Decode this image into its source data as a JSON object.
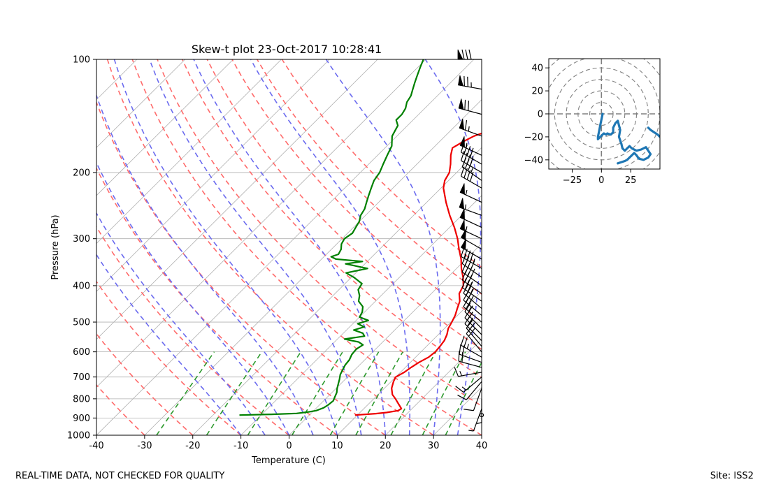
{
  "colors": {
    "temperature": "#ee0000",
    "dewpoint": "#008000",
    "isotherm": "#b0b0b0",
    "dry_adiabat": "#ff6b6b",
    "moist_adiabat": "#6b6bef",
    "mixing_ratio": "#2e9a2e",
    "hodograph": "#1f77b4",
    "hodo_rings": "#808080"
  },
  "footer": {
    "left": "REAL-TIME DATA, NOT CHECKED FOR QUALITY",
    "right": "Site: ISS2"
  },
  "chart_data": [
    {
      "type": "line",
      "title": "Skew-t plot 23-Oct-2017 10:28:41",
      "xlabel": "Temperature (C)",
      "ylabel": "Pressure (hPa)",
      "xlim": [
        -40,
        40
      ],
      "ylim": [
        1000,
        100
      ],
      "y_scale": "log",
      "x_ticks": [
        -40,
        -30,
        -20,
        -10,
        0,
        10,
        20,
        30,
        40
      ],
      "y_ticks": [
        100,
        200,
        300,
        400,
        500,
        600,
        700,
        800,
        900,
        1000
      ],
      "grid": true,
      "dry_adiabats_theta_c": [
        -30,
        -20,
        -10,
        0,
        10,
        20,
        30,
        40,
        50,
        60,
        70,
        80,
        90,
        100
      ],
      "moist_adiabats_start_c": [
        -10,
        -5,
        0,
        5,
        10,
        15,
        20,
        25,
        30,
        35
      ],
      "mixing_ratio_lines_gkg": [
        0.4,
        1,
        2,
        4,
        7,
        10,
        16,
        24,
        32
      ],
      "series": [
        {
          "key": "temperature",
          "p": [
            884,
            876,
            870,
            860,
            850,
            830,
            800,
            780,
            750,
            720,
            700,
            680,
            660,
            640,
            620,
            600,
            580,
            560,
            540,
            520,
            500,
            480,
            460,
            440,
            420,
            400,
            380,
            360,
            340,
            320,
            300,
            280,
            260,
            240,
            220,
            210,
            200,
            190,
            180,
            172,
            165,
            160,
            155,
            150,
            145,
            140,
            135,
            130,
            125,
            120,
            115,
            110,
            105,
            100
          ],
          "values": [
            9.5,
            13.5,
            15.5,
            17.5,
            17.8,
            16.5,
            14.5,
            13.0,
            11.5,
            10.5,
            10.0,
            10.8,
            11.2,
            11.8,
            12.7,
            13.0,
            12.8,
            12.5,
            11.8,
            10.8,
            10.2,
            9.5,
            8.5,
            7.5,
            5.8,
            5.0,
            3.2,
            1.0,
            -1.0,
            -3.5,
            -6.0,
            -9.0,
            -12.5,
            -16.0,
            -19.5,
            -20.8,
            -21.5,
            -23.0,
            -24.8,
            -26.0,
            -25.0,
            -24.0,
            -22.0,
            -21.0,
            -20.0,
            -20.5,
            -19.0,
            -18.0,
            -17.5,
            -17.2,
            -16.5,
            -15.5,
            -15.0,
            -13.5
          ]
        },
        {
          "key": "dewpoint",
          "p": [
            884,
            880,
            875,
            868,
            860,
            845,
            830,
            810,
            790,
            770,
            750,
            730,
            710,
            690,
            670,
            650,
            630,
            610,
            590,
            575,
            565,
            555,
            545,
            535,
            525,
            515,
            505,
            495,
            485,
            470,
            455,
            440,
            425,
            410,
            395,
            380,
            370,
            360,
            350,
            345,
            340,
            335,
            330,
            320,
            310,
            300,
            290,
            280,
            270,
            260,
            250,
            240,
            230,
            220,
            210,
            200,
            190,
            180,
            170,
            160,
            150,
            145,
            140,
            135,
            130,
            125,
            120,
            115,
            110,
            105,
            100
          ],
          "values": [
            -14.5,
            -8.0,
            -3.0,
            -1.0,
            0.5,
            1.5,
            1.8,
            2.0,
            1.5,
            1.0,
            0.2,
            -0.5,
            -1.2,
            -2.0,
            -2.5,
            -3.0,
            -3.2,
            -3.8,
            -4.0,
            -3.5,
            -5.0,
            -8.5,
            -5.0,
            -6.0,
            -8.5,
            -7.0,
            -9.0,
            -7.5,
            -10.0,
            -10.5,
            -11.5,
            -13.5,
            -14.5,
            -16.0,
            -16.5,
            -19.5,
            -22.0,
            -18.5,
            -24.0,
            -21.0,
            -27.0,
            -28.5,
            -27.5,
            -28.0,
            -29.0,
            -29.5,
            -29.0,
            -29.5,
            -30.0,
            -31.0,
            -31.5,
            -32.5,
            -33.5,
            -34.5,
            -35.5,
            -36.0,
            -37.0,
            -38.0,
            -39.0,
            -41.0,
            -42.0,
            -43.5,
            -43.5,
            -44.0,
            -45.0,
            -45.5,
            -46.5,
            -47.5,
            -48.5,
            -49.5,
            -50.5
          ]
        }
      ],
      "wind_barbs": [
        {
          "p": 100,
          "dir": 270,
          "kt": 80
        },
        {
          "p": 120,
          "dir": 280,
          "kt": 75
        },
        {
          "p": 140,
          "dir": 285,
          "kt": 70
        },
        {
          "p": 160,
          "dir": 290,
          "kt": 65
        },
        {
          "p": 180,
          "dir": 295,
          "kt": 55
        },
        {
          "p": 190,
          "dir": 300,
          "kt": 40
        },
        {
          "p": 200,
          "dir": 300,
          "kt": 40
        },
        {
          "p": 210,
          "dir": 305,
          "kt": 35
        },
        {
          "p": 220,
          "dir": 300,
          "kt": 40
        },
        {
          "p": 240,
          "dir": 295,
          "kt": 55
        },
        {
          "p": 260,
          "dir": 290,
          "kt": 55
        },
        {
          "p": 280,
          "dir": 295,
          "kt": 50
        },
        {
          "p": 300,
          "dir": 295,
          "kt": 55
        },
        {
          "p": 320,
          "dir": 300,
          "kt": 50
        },
        {
          "p": 340,
          "dir": 300,
          "kt": 50
        },
        {
          "p": 360,
          "dir": 300,
          "kt": 45
        },
        {
          "p": 380,
          "dir": 305,
          "kt": 40
        },
        {
          "p": 400,
          "dir": 305,
          "kt": 40
        },
        {
          "p": 420,
          "dir": 305,
          "kt": 35
        },
        {
          "p": 440,
          "dir": 305,
          "kt": 35
        },
        {
          "p": 460,
          "dir": 310,
          "kt": 30
        },
        {
          "p": 480,
          "dir": 310,
          "kt": 30
        },
        {
          "p": 500,
          "dir": 310,
          "kt": 25
        },
        {
          "p": 520,
          "dir": 315,
          "kt": 25
        },
        {
          "p": 540,
          "dir": 315,
          "kt": 25
        },
        {
          "p": 560,
          "dir": 315,
          "kt": 20
        },
        {
          "p": 580,
          "dir": 320,
          "kt": 20
        },
        {
          "p": 600,
          "dir": 320,
          "kt": 20
        },
        {
          "p": 620,
          "dir": 300,
          "kt": 25
        },
        {
          "p": 640,
          "dir": 290,
          "kt": 20
        },
        {
          "p": 660,
          "dir": 285,
          "kt": 20
        },
        {
          "p": 680,
          "dir": 260,
          "kt": 15
        },
        {
          "p": 700,
          "dir": 230,
          "kt": 15
        },
        {
          "p": 720,
          "dir": 220,
          "kt": 10
        },
        {
          "p": 750,
          "dir": 200,
          "kt": 10
        },
        {
          "p": 800,
          "dir": 180,
          "kt": 5
        },
        {
          "p": 850,
          "dir": 200,
          "kt": 5
        }
      ]
    },
    {
      "type": "line",
      "title": "",
      "xlim": [
        -45,
        50
      ],
      "ylim": [
        -48,
        48
      ],
      "x_ticks": [
        -25,
        0,
        25
      ],
      "y_ticks": [
        -40,
        -20,
        0,
        20,
        40
      ],
      "ring_radii": [
        10,
        20,
        30,
        40,
        50,
        60,
        70,
        80
      ],
      "series": [
        {
          "key": "hodograph",
          "u": [
            1,
            0,
            -1,
            -2,
            -3,
            -3,
            -2,
            1,
            2,
            4,
            5,
            8,
            10,
            10,
            12,
            14,
            15,
            16,
            15,
            17,
            18,
            20,
            22,
            24,
            26,
            30,
            34,
            38,
            42,
            40,
            36,
            32,
            30,
            28,
            26,
            24,
            22,
            20,
            17,
            14
          ],
          "v": [
            0,
            -5,
            -10,
            -15,
            -20,
            -22,
            -21,
            -18,
            -17,
            -18,
            -17,
            -18,
            -16,
            -12,
            -8,
            -6,
            -10,
            -14,
            -20,
            -26,
            -30,
            -32,
            -30,
            -28,
            -30,
            -32,
            -31,
            -29,
            -35,
            -38,
            -40,
            -39,
            -36,
            -34,
            -36,
            -38,
            -40,
            -41,
            -42,
            -43
          ]
        },
        {
          "key": "hodograph_upper",
          "u": [
            50,
            48,
            45,
            42,
            40
          ],
          "v": [
            -20,
            -18,
            -16,
            -14,
            -12
          ]
        }
      ]
    }
  ]
}
